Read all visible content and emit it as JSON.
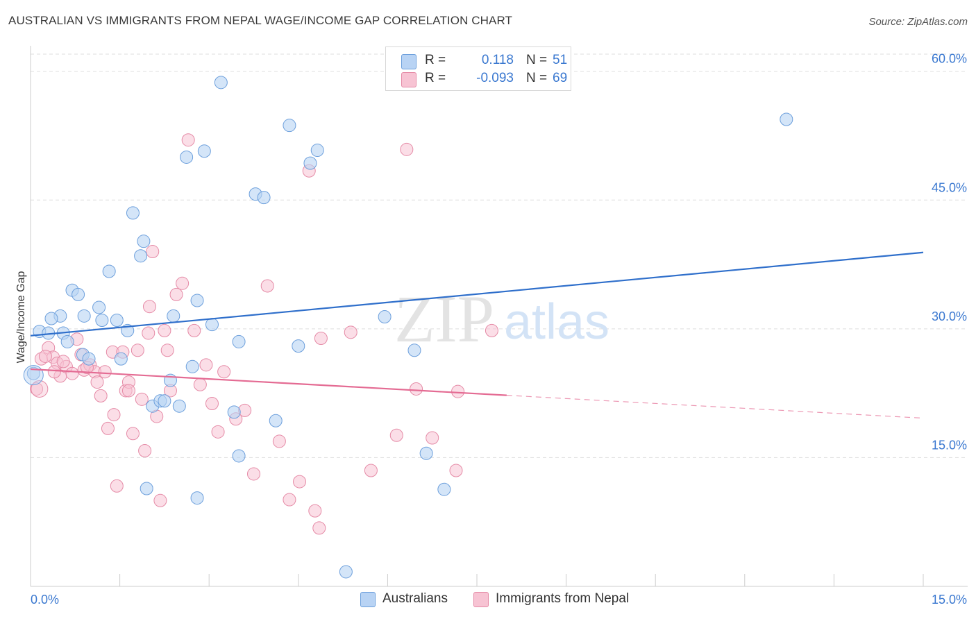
{
  "title": "AUSTRALIAN VS IMMIGRANTS FROM NEPAL WAGE/INCOME GAP CORRELATION CHART",
  "source": "Source: ZipAtlas.com",
  "watermark": {
    "zip": "ZIP",
    "atlas": "atlas"
  },
  "colors": {
    "blue_fill": "#b8d3f4",
    "blue_stroke": "#6c9fdc",
    "blue_line": "#2f6fcb",
    "pink_fill": "#f7c3d3",
    "pink_stroke": "#e58aa6",
    "pink_line": "#e46b93",
    "tick_text": "#3a78d0",
    "grid": "#dddddd"
  },
  "legend": {
    "rows": [
      {
        "r_label": "R =",
        "r_value": "0.118",
        "n_label": "N =",
        "n_value": "51"
      },
      {
        "r_label": "R =",
        "r_value": "-0.093",
        "n_label": "N =",
        "n_value": "69"
      }
    ]
  },
  "bottom_legend": {
    "series1": "Australians",
    "series2": "Immigrants from Nepal"
  },
  "chart_data": {
    "type": "scatter",
    "title": "AUSTRALIAN VS IMMIGRANTS FROM NEPAL WAGE/INCOME GAP CORRELATION CHART",
    "xlabel": "",
    "ylabel": "Wage/Income Gap",
    "xlim": [
      0,
      15
    ],
    "ylim": [
      0,
      62
    ],
    "x_tick_labels": [
      "0.0%",
      "15.0%"
    ],
    "y_ticks": [
      15,
      30,
      45,
      60
    ],
    "y_tick_labels": [
      "15.0%",
      "30.0%",
      "45.0%",
      "60.0%"
    ],
    "grid": true,
    "series": [
      {
        "name": "Australians",
        "r": 0.118,
        "n": 51,
        "trend": {
          "x": [
            0,
            15
          ],
          "y": [
            29.2,
            38.9
          ],
          "dashed_from": null
        },
        "points": [
          [
            0.15,
            29.7
          ],
          [
            0.3,
            29.5
          ],
          [
            0.5,
            31.5
          ],
          [
            0.35,
            31.2
          ],
          [
            0.55,
            29.5
          ],
          [
            0.62,
            28.5
          ],
          [
            0.7,
            34.5
          ],
          [
            0.8,
            34.0
          ],
          [
            0.9,
            31.5
          ],
          [
            0.88,
            27.0
          ],
          [
            0.98,
            26.5
          ],
          [
            1.15,
            32.5
          ],
          [
            1.2,
            31.0
          ],
          [
            1.32,
            36.7
          ],
          [
            1.45,
            31.0
          ],
          [
            1.52,
            26.5
          ],
          [
            1.63,
            29.8
          ],
          [
            1.72,
            43.5
          ],
          [
            1.85,
            38.5
          ],
          [
            1.9,
            40.2
          ],
          [
            2.05,
            21.0
          ],
          [
            2.18,
            21.6
          ],
          [
            2.25,
            21.6
          ],
          [
            2.35,
            24.0
          ],
          [
            2.4,
            31.5
          ],
          [
            2.5,
            21.0
          ],
          [
            2.62,
            50.0
          ],
          [
            2.72,
            25.6
          ],
          [
            2.8,
            33.3
          ],
          [
            2.92,
            50.7
          ],
          [
            3.05,
            30.5
          ],
          [
            3.2,
            58.7
          ],
          [
            3.5,
            28.5
          ],
          [
            3.78,
            45.7
          ],
          [
            3.92,
            45.3
          ],
          [
            4.12,
            19.3
          ],
          [
            4.35,
            53.7
          ],
          [
            4.5,
            28.0
          ],
          [
            4.7,
            49.3
          ],
          [
            4.82,
            50.8
          ],
          [
            5.95,
            31.4
          ],
          [
            6.45,
            27.5
          ],
          [
            6.65,
            15.5
          ],
          [
            6.95,
            11.3
          ],
          [
            12.7,
            54.4
          ],
          [
            3.42,
            20.3
          ],
          [
            3.5,
            15.2
          ],
          [
            2.8,
            10.3
          ],
          [
            1.95,
            11.4
          ],
          [
            5.3,
            1.7
          ],
          [
            0.05,
            24.8
          ]
        ]
      },
      {
        "name": "Immigrants from Nepal",
        "r": -0.093,
        "n": 69,
        "trend": {
          "x": [
            0,
            15
          ],
          "y": [
            25.3,
            19.6
          ],
          "dashed_from": 8.0
        },
        "points": [
          [
            0.1,
            23.0
          ],
          [
            0.18,
            26.5
          ],
          [
            0.3,
            27.8
          ],
          [
            0.38,
            26.7
          ],
          [
            0.45,
            26.0
          ],
          [
            0.5,
            24.5
          ],
          [
            0.6,
            25.6
          ],
          [
            0.7,
            24.8
          ],
          [
            0.78,
            28.8
          ],
          [
            0.85,
            27.0
          ],
          [
            0.9,
            25.2
          ],
          [
            1.0,
            25.8
          ],
          [
            1.08,
            25.0
          ],
          [
            1.12,
            23.8
          ],
          [
            1.18,
            22.2
          ],
          [
            1.25,
            25.0
          ],
          [
            1.3,
            18.4
          ],
          [
            1.38,
            27.3
          ],
          [
            1.45,
            11.7
          ],
          [
            1.55,
            27.3
          ],
          [
            1.6,
            22.8
          ],
          [
            1.65,
            23.8
          ],
          [
            1.72,
            17.8
          ],
          [
            1.8,
            27.5
          ],
          [
            1.87,
            21.8
          ],
          [
            1.92,
            15.8
          ],
          [
            1.98,
            29.5
          ],
          [
            2.05,
            39.0
          ],
          [
            2.12,
            19.8
          ],
          [
            2.18,
            10.0
          ],
          [
            2.25,
            29.8
          ],
          [
            2.35,
            22.8
          ],
          [
            2.45,
            34.0
          ],
          [
            2.55,
            35.3
          ],
          [
            2.65,
            52.0
          ],
          [
            2.75,
            29.8
          ],
          [
            2.85,
            23.5
          ],
          [
            2.95,
            25.8
          ],
          [
            3.05,
            21.3
          ],
          [
            3.15,
            18.0
          ],
          [
            3.25,
            25.0
          ],
          [
            3.45,
            19.5
          ],
          [
            3.75,
            13.1
          ],
          [
            3.98,
            35.0
          ],
          [
            4.18,
            16.9
          ],
          [
            4.35,
            10.1
          ],
          [
            4.52,
            12.2
          ],
          [
            4.68,
            48.4
          ],
          [
            4.78,
            8.8
          ],
          [
            4.85,
            6.8
          ],
          [
            4.88,
            28.9
          ],
          [
            5.38,
            29.6
          ],
          [
            5.72,
            13.5
          ],
          [
            6.15,
            17.6
          ],
          [
            6.32,
            50.9
          ],
          [
            6.48,
            23.0
          ],
          [
            6.75,
            17.3
          ],
          [
            7.15,
            13.5
          ],
          [
            7.18,
            22.7
          ],
          [
            7.75,
            29.8
          ],
          [
            0.25,
            26.8
          ],
          [
            2.0,
            32.6
          ],
          [
            2.3,
            27.5
          ],
          [
            1.65,
            22.8
          ],
          [
            0.95,
            25.5
          ],
          [
            1.4,
            20.0
          ],
          [
            0.55,
            26.2
          ],
          [
            3.6,
            20.5
          ],
          [
            0.4,
            25.0
          ]
        ]
      }
    ]
  }
}
